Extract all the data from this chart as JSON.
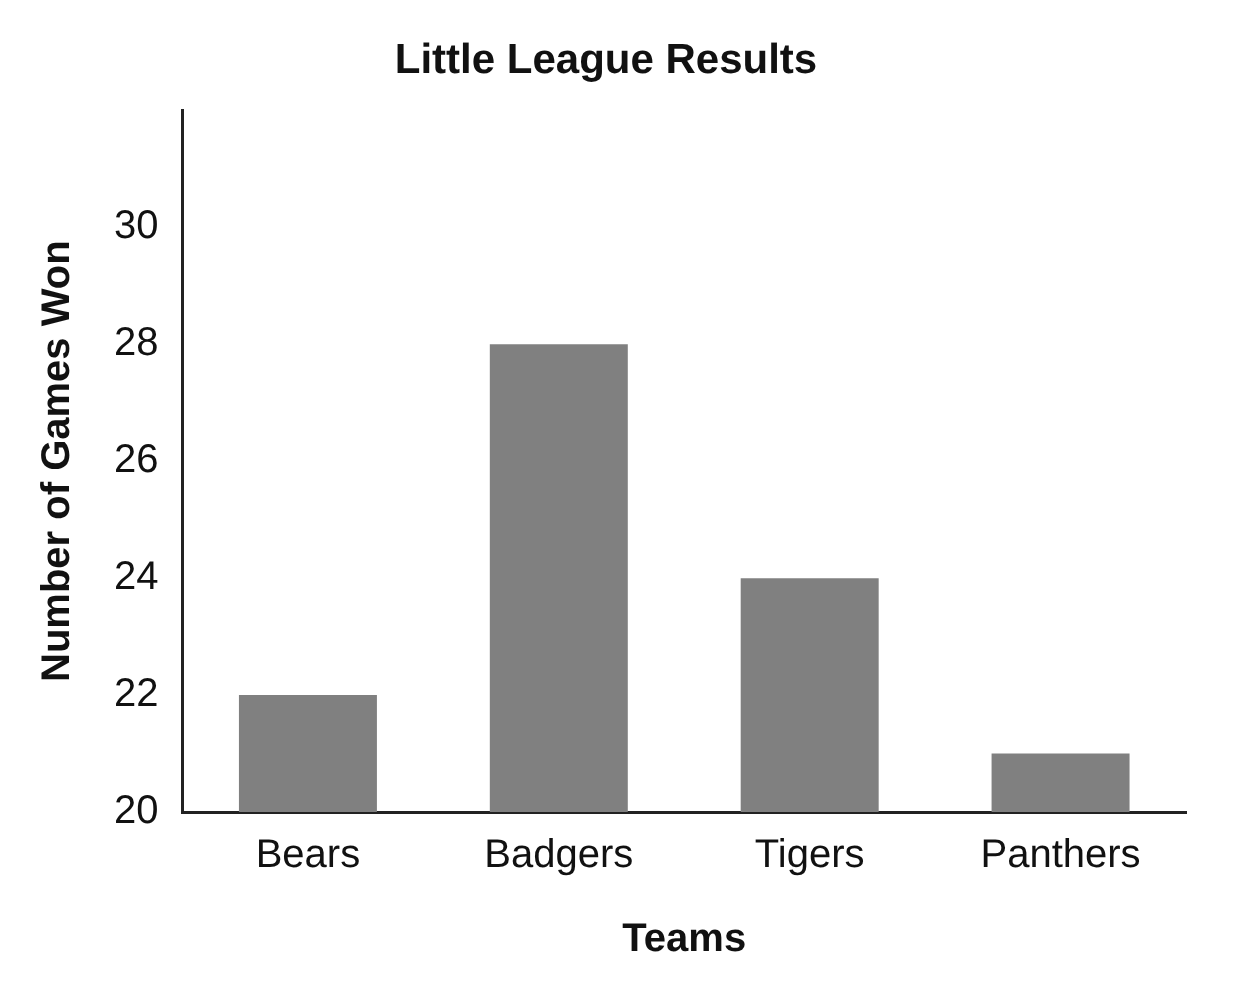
{
  "chart_data": {
    "type": "bar",
    "title": "Little League Results",
    "xlabel": "Teams",
    "ylabel": "Number of Games Won",
    "categories": [
      "Bears",
      "Badgers",
      "Tigers",
      "Panthers"
    ],
    "values": [
      22,
      28,
      24,
      21
    ],
    "color": "#808080",
    "ylim": [
      20,
      32
    ],
    "yticks": [
      20,
      22,
      24,
      26,
      28,
      30
    ],
    "grid": false,
    "legend": false
  }
}
